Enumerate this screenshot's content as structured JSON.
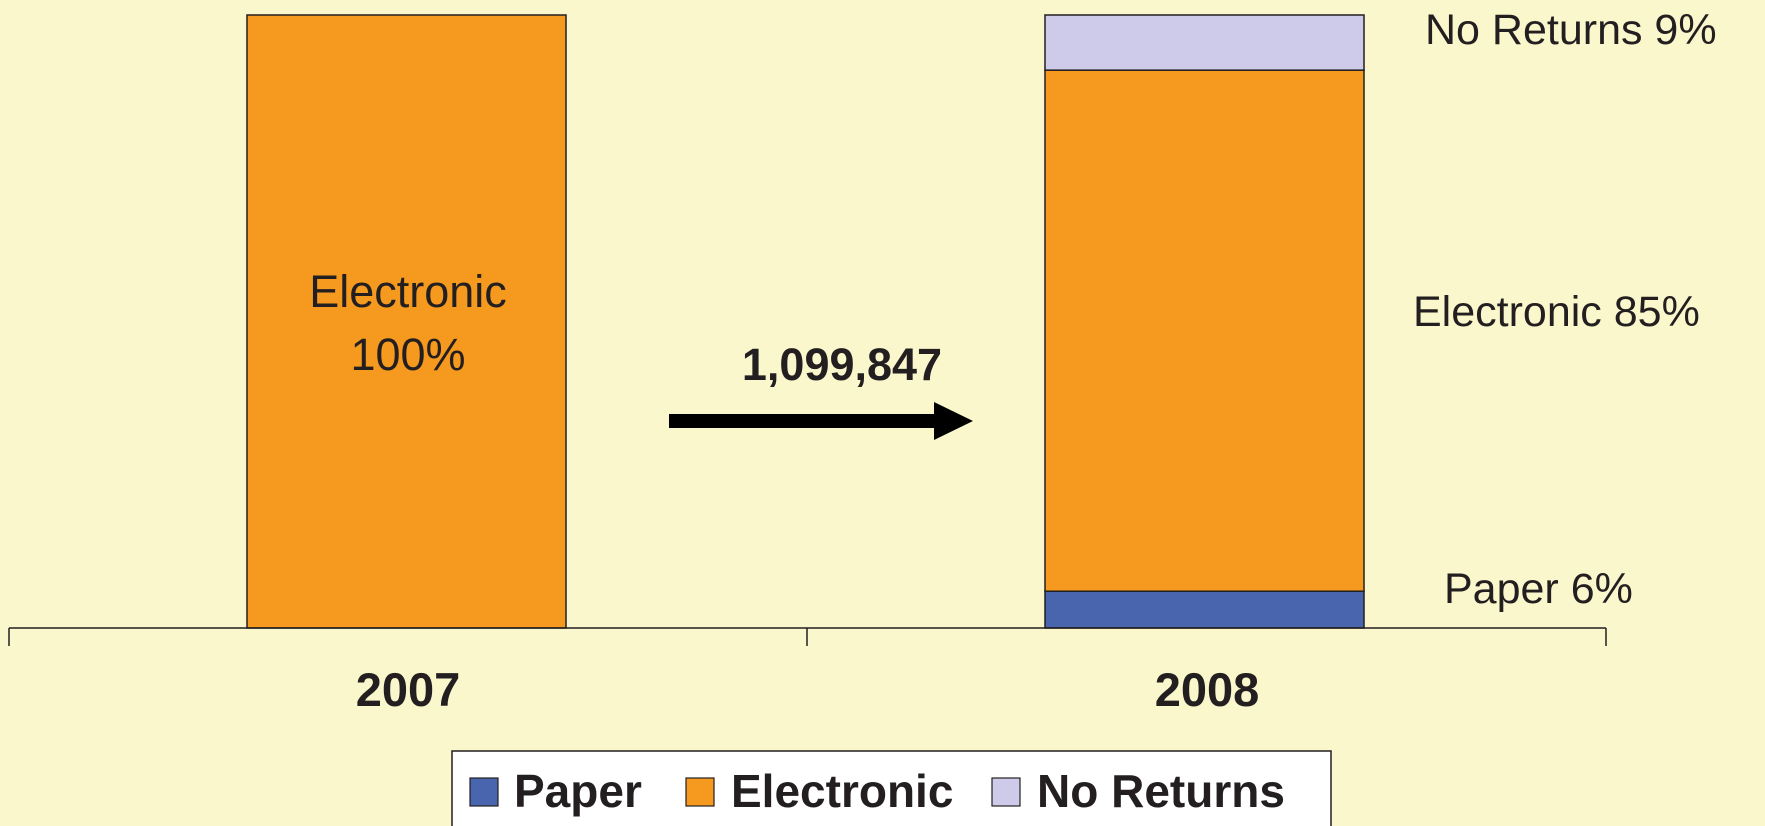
{
  "chart_data": {
    "type": "bar",
    "stacked": true,
    "categories": [
      "2007",
      "2008"
    ],
    "series": [
      {
        "name": "Paper",
        "values": [
          0,
          6
        ],
        "color": "#4865ad"
      },
      {
        "name": "Electronic",
        "values": [
          100,
          85
        ],
        "color": "#f6991f"
      },
      {
        "name": "No Returns",
        "values": [
          0,
          9
        ],
        "color": "#cdcbe9"
      }
    ],
    "ylim": [
      0,
      100
    ],
    "grid": false,
    "legend": "bottom",
    "data_labels": {
      "bar_2007_electronic": [
        "Electronic",
        "100%"
      ],
      "bar_2008_no_returns": "No Returns 9%",
      "bar_2008_electronic": "Electronic 85%",
      "bar_2008_paper": "Paper 6%"
    },
    "annotation": {
      "text": "1,099,847",
      "arrow": "right"
    }
  },
  "colors": {
    "background": "#faf7cc",
    "axis": "#231f20",
    "text": "#231f20"
  }
}
